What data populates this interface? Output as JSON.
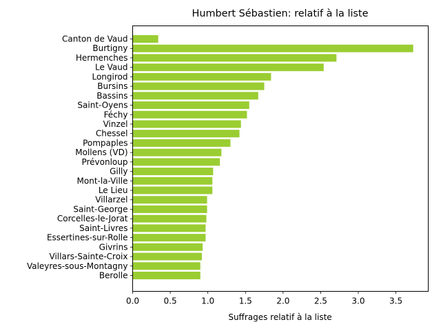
{
  "chart_data": {
    "type": "bar",
    "orientation": "horizontal",
    "title": "Humbert Sébastien: relatif à la liste",
    "xlabel": "Suffrages relatif à la liste",
    "ylabel": "",
    "xlim": [
      0,
      3.93
    ],
    "xticks": [
      "0.0",
      "0.5",
      "1.0",
      "1.5",
      "2.0",
      "2.5",
      "3.0",
      "3.5"
    ],
    "bar_color": "#9acd32",
    "grid": false,
    "categories": [
      "Canton de Vaud",
      "Burtigny",
      "Hermenches",
      "Le Vaud",
      "Longirod",
      "Bursins",
      "Bassins",
      "Saint-Oyens",
      "Féchy",
      "Vinzel",
      "Chessel",
      "Pompaples",
      "Mollens (VD)",
      "Prévonloup",
      "Gilly",
      "Mont-la-Ville",
      "Le Lieu",
      "Villarzel",
      "Saint-George",
      "Corcelles-le-Jorat",
      "Saint-Livres",
      "Essertines-sur-Rolle",
      "Givrins",
      "Villars-Sainte-Croix",
      "Valeyres-sous-Montagny",
      "Berolle"
    ],
    "values": [
      0.34,
      3.73,
      2.71,
      2.54,
      1.84,
      1.75,
      1.67,
      1.55,
      1.52,
      1.44,
      1.42,
      1.3,
      1.18,
      1.16,
      1.07,
      1.06,
      1.06,
      0.99,
      0.99,
      0.98,
      0.97,
      0.97,
      0.93,
      0.92,
      0.9,
      0.9
    ]
  }
}
